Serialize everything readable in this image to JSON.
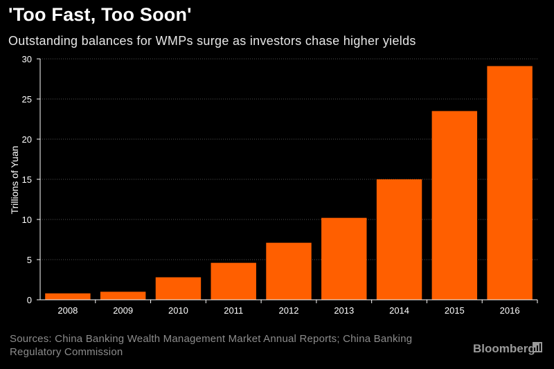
{
  "header": {
    "title": "'Too Fast, Too Soon'",
    "subtitle": "Outstanding balances for WMPs surge as investors chase higher yields"
  },
  "footer": {
    "source": "Sources: China Banking Wealth Management Market Annual Reports; China Banking Regulatory Commission",
    "brand": "Bloomberg",
    "brand_icon": "bloomberg-chart-icon"
  },
  "chart_data": {
    "type": "bar",
    "title": "'Too Fast, Too Soon'",
    "subtitle": "Outstanding balances for WMPs surge as investors chase higher yields",
    "xlabel": "",
    "ylabel": "Trillions of Yuan",
    "categories": [
      "2008",
      "2009",
      "2010",
      "2011",
      "2012",
      "2013",
      "2014",
      "2015",
      "2016"
    ],
    "values": [
      0.8,
      1.0,
      2.8,
      4.6,
      7.1,
      10.2,
      15.0,
      23.5,
      29.1
    ],
    "ylim": [
      0,
      30
    ],
    "yticks": [
      0,
      5,
      10,
      15,
      20,
      25,
      30
    ],
    "grid": true,
    "legend": "none",
    "colors": {
      "bar": "#ff5f00",
      "background": "#000000",
      "grid": "#555555",
      "axis": "#ffffff"
    }
  }
}
